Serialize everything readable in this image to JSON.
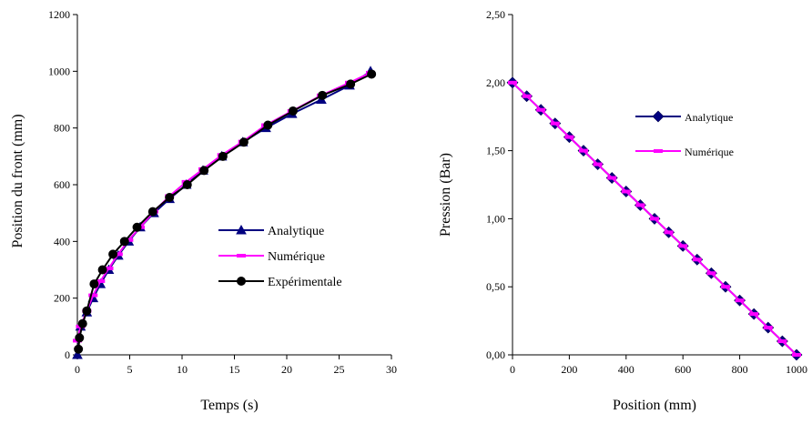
{
  "chart_data": [
    {
      "type": "line",
      "xlabel": "Temps (s)",
      "ylabel": "Position du front (mm)",
      "xlim": [
        0,
        30
      ],
      "ylim": [
        0,
        1200
      ],
      "xticks": [
        "0",
        "5",
        "10",
        "15",
        "20",
        "25",
        "30"
      ],
      "yticks": [
        "0",
        "200",
        "400",
        "600",
        "800",
        "1000",
        "1200"
      ],
      "legend_position": "center-right",
      "series": [
        {
          "name": "Analytique",
          "color": "#000080",
          "marker": "triangle",
          "x": [
            0,
            0.3,
            0.9,
            1.5,
            2.2,
            3.0,
            3.9,
            4.9,
            6.0,
            7.3,
            8.8,
            10.4,
            12.0,
            13.8,
            15.8,
            18.0,
            20.5,
            23.3,
            26.0,
            28.0
          ],
          "y": [
            0,
            100,
            150,
            200,
            250,
            300,
            350,
            400,
            450,
            500,
            550,
            600,
            650,
            700,
            750,
            800,
            850,
            900,
            950,
            1000
          ]
        },
        {
          "name": "Numérique",
          "color": "#ff00ff",
          "marker": "dash",
          "x": [
            0,
            0.3,
            0.9,
            1.5,
            2.2,
            3.0,
            3.9,
            4.9,
            6.0,
            7.3,
            8.8,
            10.4,
            12.0,
            13.8,
            15.8,
            18.0,
            20.5,
            23.3,
            26.0,
            28.0
          ],
          "y": [
            50,
            100,
            155,
            210,
            260,
            305,
            355,
            405,
            450,
            505,
            560,
            610,
            655,
            705,
            752,
            810,
            860,
            915,
            960,
            995
          ]
        },
        {
          "name": "Expérimentale",
          "color": "#000000",
          "marker": "circle",
          "x": [
            0.1,
            0.2,
            0.5,
            0.9,
            1.6,
            2.4,
            3.4,
            4.5,
            5.7,
            7.2,
            8.8,
            10.5,
            12.1,
            13.9,
            15.9,
            18.2,
            20.6,
            23.4,
            26.1,
            28.1
          ],
          "y": [
            20,
            60,
            110,
            155,
            250,
            300,
            355,
            400,
            450,
            505,
            555,
            600,
            650,
            700,
            750,
            810,
            860,
            915,
            955,
            990
          ]
        }
      ]
    },
    {
      "type": "line",
      "xlabel": "Position (mm)",
      "ylabel": "Pression (Bar)",
      "xlim": [
        0,
        1000
      ],
      "ylim": [
        0,
        2.5
      ],
      "xticks": [
        "0",
        "200",
        "400",
        "600",
        "800",
        "1000"
      ],
      "yticks": [
        "0,00",
        "0,50",
        "1,00",
        "1,50",
        "2,00",
        "2,50"
      ],
      "legend_position": "top-right",
      "series": [
        {
          "name": "Analytique",
          "color": "#000080",
          "marker": "diamond",
          "x": [
            0,
            50,
            100,
            150,
            200,
            250,
            300,
            350,
            400,
            450,
            500,
            550,
            600,
            650,
            700,
            750,
            800,
            850,
            900,
            950,
            1000
          ],
          "y": [
            2.0,
            1.9,
            1.8,
            1.7,
            1.6,
            1.5,
            1.4,
            1.3,
            1.2,
            1.1,
            1.0,
            0.9,
            0.8,
            0.7,
            0.6,
            0.5,
            0.4,
            0.3,
            0.2,
            0.1,
            0.0
          ]
        },
        {
          "name": "Numérique",
          "color": "#ff00ff",
          "marker": "dash",
          "x": [
            0,
            50,
            100,
            150,
            200,
            250,
            300,
            350,
            400,
            450,
            500,
            550,
            600,
            650,
            700,
            750,
            800,
            850,
            900,
            950,
            1000
          ],
          "y": [
            2.0,
            1.9,
            1.8,
            1.7,
            1.6,
            1.5,
            1.4,
            1.3,
            1.2,
            1.1,
            1.0,
            0.9,
            0.8,
            0.7,
            0.6,
            0.5,
            0.4,
            0.3,
            0.2,
            0.1,
            0.0
          ]
        }
      ]
    }
  ]
}
